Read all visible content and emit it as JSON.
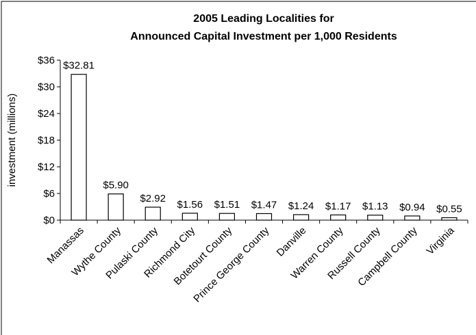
{
  "chart_data": {
    "type": "bar",
    "title": [
      "2005 Leading Localities for",
      "Announced Capital Investment per 1,000 Residents"
    ],
    "ylabel": "investment (millions)",
    "categories": [
      "Manassas",
      "Wythe County",
      "Pulaski County",
      "Richmond City",
      "Botetourt County",
      "Prince George County",
      "Danville",
      "Warren County",
      "Russell County",
      "Campbell County",
      "Virginia"
    ],
    "values": [
      32.81,
      5.9,
      2.92,
      1.56,
      1.51,
      1.47,
      1.24,
      1.17,
      1.13,
      0.94,
      0.55
    ],
    "value_labels": [
      "$32.81",
      "$5.90",
      "$2.92",
      "$1.56",
      "$1.51",
      "$1.47",
      "$1.24",
      "$1.17",
      "$1.13",
      "$0.94",
      "$0.55"
    ],
    "color": "#ffffff",
    "ylim": [
      0,
      36
    ],
    "yticks": [
      {
        "value": 0,
        "label": "$0"
      },
      {
        "value": 6,
        "label": "$6"
      },
      {
        "value": 12,
        "label": "$12"
      },
      {
        "value": 18,
        "label": "$18"
      },
      {
        "value": 24,
        "label": "$24"
      },
      {
        "value": 30,
        "label": "$30"
      },
      {
        "value": 36,
        "label": "$36"
      }
    ],
    "grid": false
  }
}
